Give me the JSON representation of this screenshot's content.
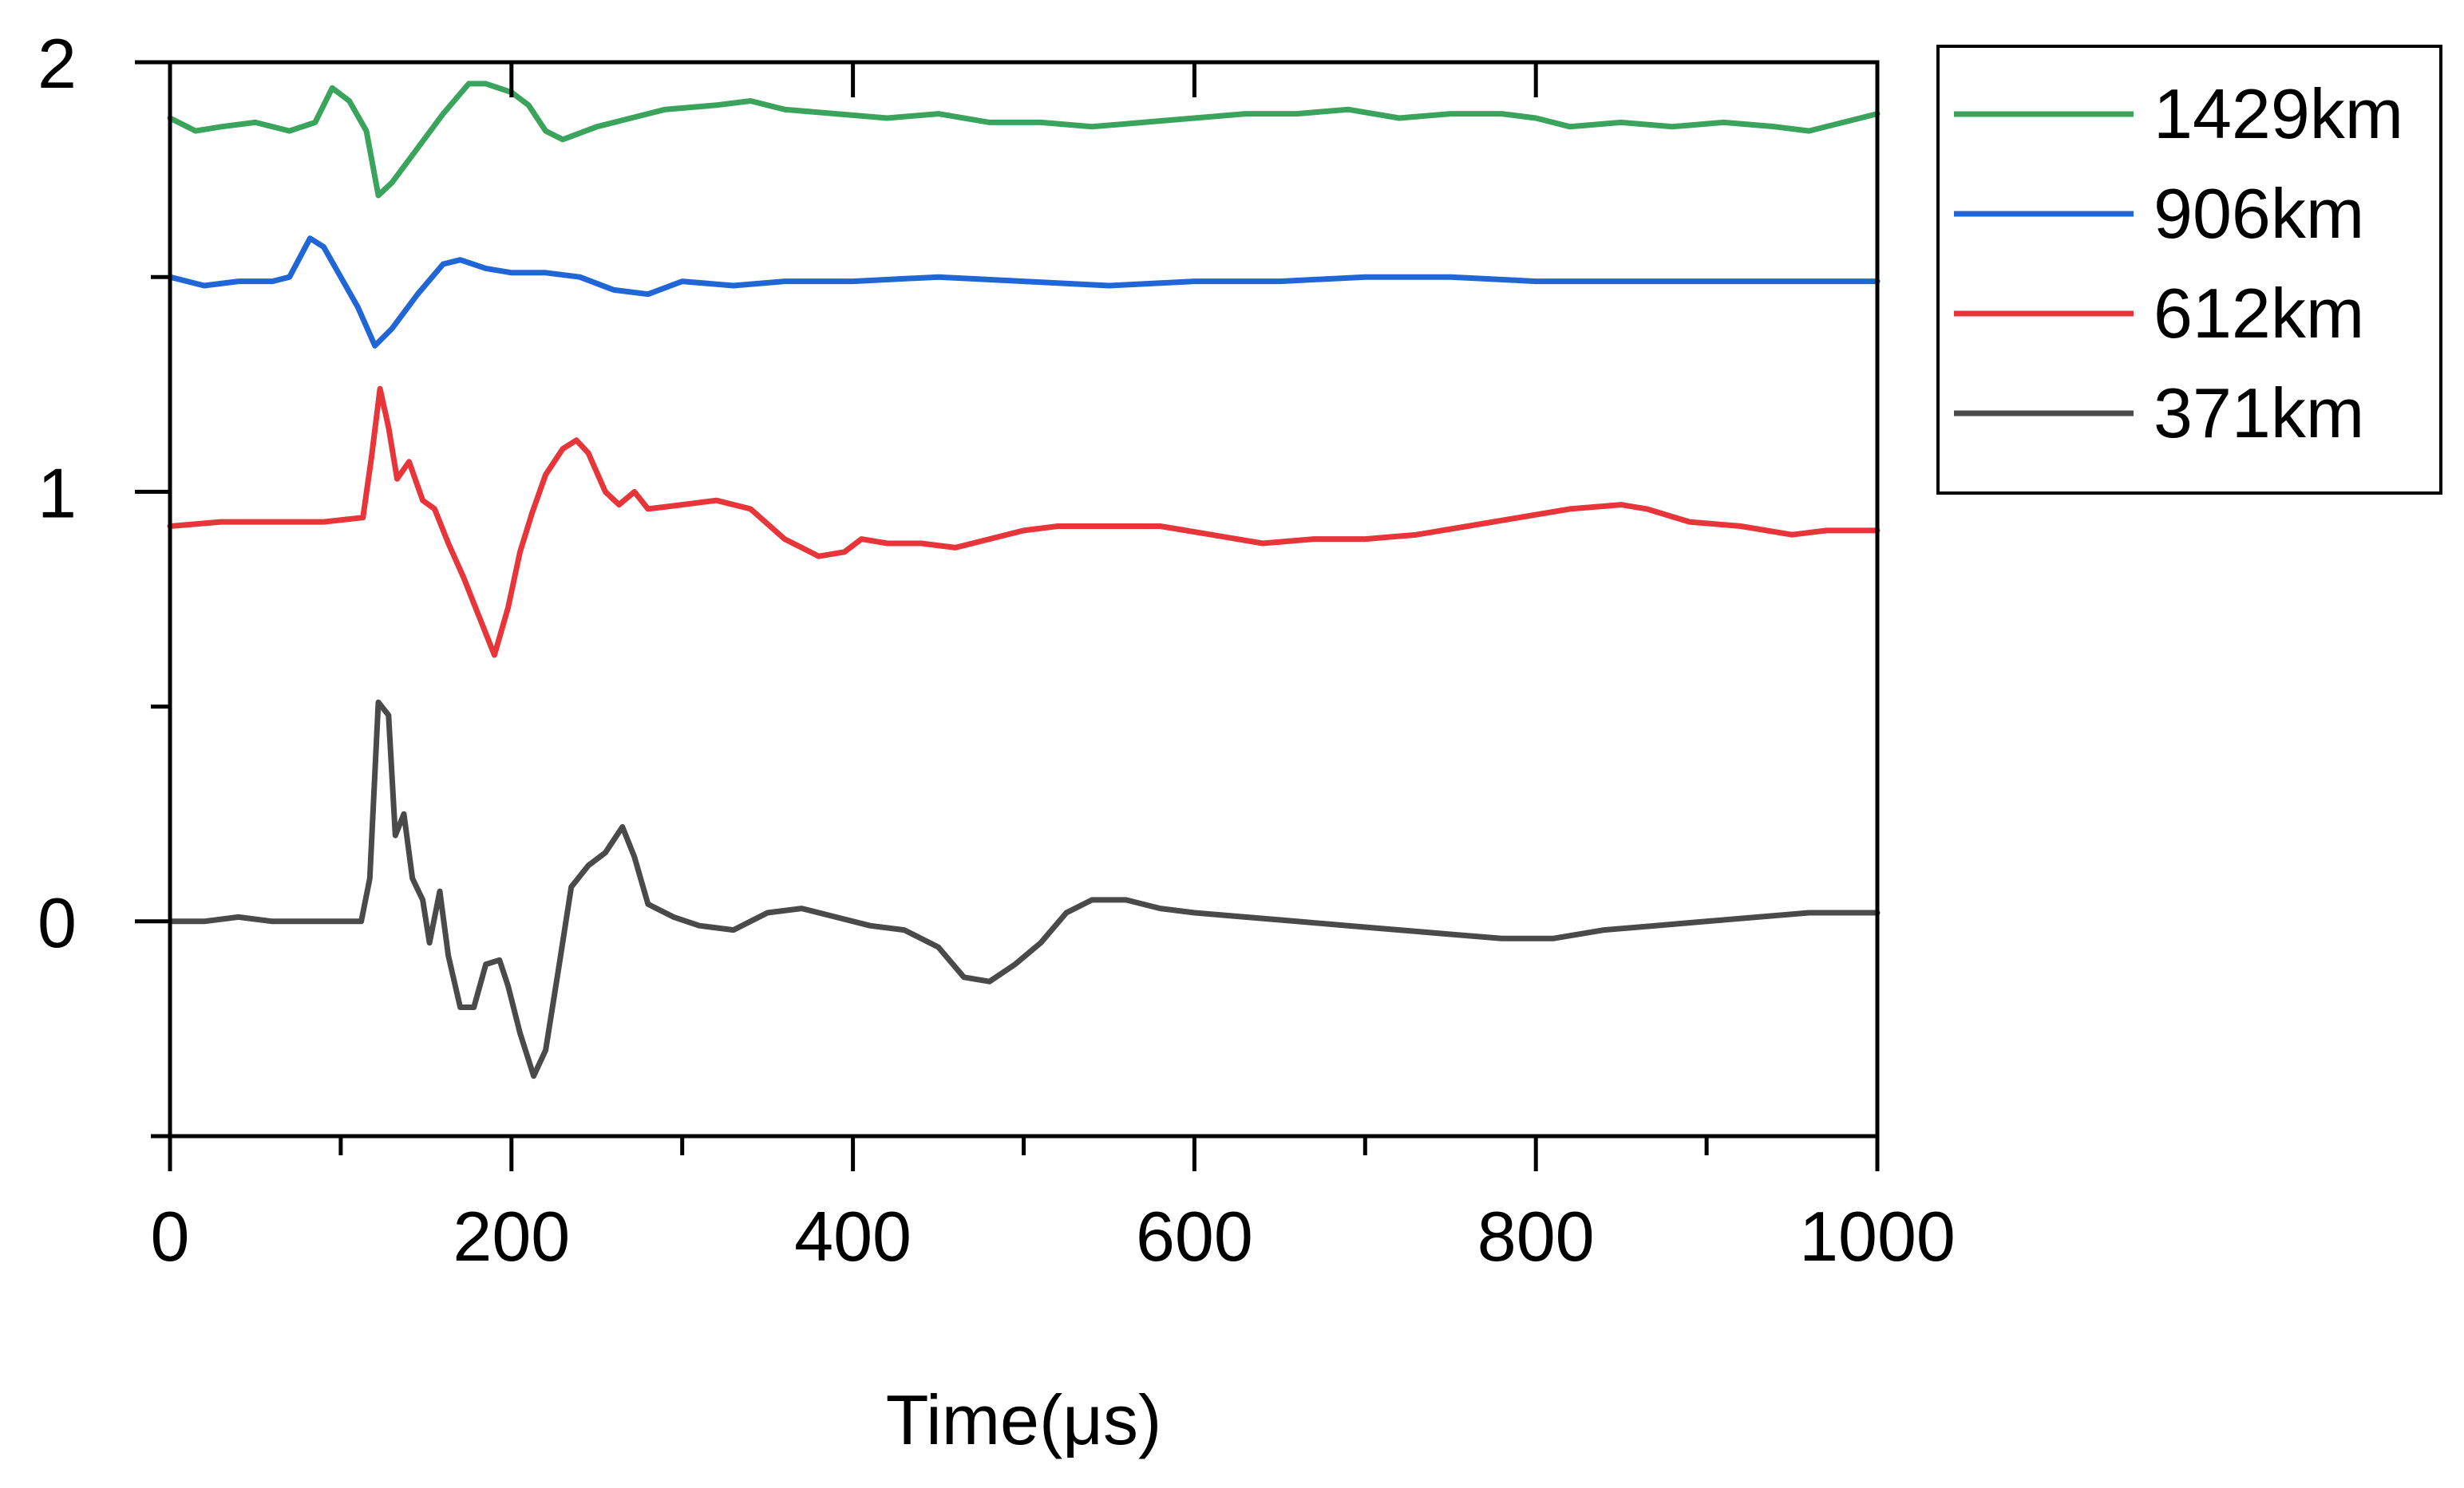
{
  "chart_data": {
    "type": "line",
    "title": "",
    "xlabel": "Time(μs)",
    "ylabel": "",
    "xlim": [
      0,
      1000
    ],
    "ylim": [
      -0.5,
      2
    ],
    "xticks": [
      0,
      200,
      400,
      600,
      800,
      1000
    ],
    "xtick_labels": [
      "0",
      "200",
      "400",
      "600",
      "800",
      "1000"
    ],
    "yticks": [
      0,
      1,
      2
    ],
    "ytick_labels": [
      "0",
      "1",
      "2"
    ],
    "grid": false,
    "legend_position": "top-right, outside plot",
    "series": [
      {
        "name": "1429km",
        "color": "#3aa35c",
        "points": [
          [
            0,
            1.87
          ],
          [
            15,
            1.84
          ],
          [
            30,
            1.85
          ],
          [
            50,
            1.86
          ],
          [
            70,
            1.84
          ],
          [
            85,
            1.86
          ],
          [
            95,
            1.94
          ],
          [
            105,
            1.91
          ],
          [
            115,
            1.84
          ],
          [
            122,
            1.69
          ],
          [
            130,
            1.72
          ],
          [
            145,
            1.8
          ],
          [
            160,
            1.88
          ],
          [
            175,
            1.95
          ],
          [
            185,
            1.95
          ],
          [
            200,
            1.93
          ],
          [
            210,
            1.9
          ],
          [
            220,
            1.84
          ],
          [
            230,
            1.82
          ],
          [
            250,
            1.85
          ],
          [
            270,
            1.87
          ],
          [
            290,
            1.89
          ],
          [
            320,
            1.9
          ],
          [
            340,
            1.91
          ],
          [
            360,
            1.89
          ],
          [
            390,
            1.88
          ],
          [
            420,
            1.87
          ],
          [
            450,
            1.88
          ],
          [
            480,
            1.86
          ],
          [
            510,
            1.86
          ],
          [
            540,
            1.85
          ],
          [
            570,
            1.86
          ],
          [
            600,
            1.87
          ],
          [
            630,
            1.88
          ],
          [
            660,
            1.88
          ],
          [
            690,
            1.89
          ],
          [
            720,
            1.87
          ],
          [
            750,
            1.88
          ],
          [
            780,
            1.88
          ],
          [
            800,
            1.87
          ],
          [
            820,
            1.85
          ],
          [
            850,
            1.86
          ],
          [
            880,
            1.85
          ],
          [
            910,
            1.86
          ],
          [
            940,
            1.85
          ],
          [
            960,
            1.84
          ],
          [
            980,
            1.86
          ],
          [
            1000,
            1.88
          ]
        ]
      },
      {
        "name": "906km",
        "color": "#2166d6",
        "points": [
          [
            0,
            1.5
          ],
          [
            20,
            1.48
          ],
          [
            40,
            1.49
          ],
          [
            60,
            1.49
          ],
          [
            70,
            1.5
          ],
          [
            82,
            1.59
          ],
          [
            90,
            1.57
          ],
          [
            100,
            1.5
          ],
          [
            110,
            1.43
          ],
          [
            120,
            1.34
          ],
          [
            130,
            1.38
          ],
          [
            145,
            1.46
          ],
          [
            160,
            1.53
          ],
          [
            170,
            1.54
          ],
          [
            185,
            1.52
          ],
          [
            200,
            1.51
          ],
          [
            220,
            1.51
          ],
          [
            240,
            1.5
          ],
          [
            260,
            1.47
          ],
          [
            280,
            1.46
          ],
          [
            300,
            1.49
          ],
          [
            330,
            1.48
          ],
          [
            360,
            1.49
          ],
          [
            400,
            1.49
          ],
          [
            450,
            1.5
          ],
          [
            500,
            1.49
          ],
          [
            550,
            1.48
          ],
          [
            600,
            1.49
          ],
          [
            650,
            1.49
          ],
          [
            700,
            1.5
          ],
          [
            750,
            1.5
          ],
          [
            800,
            1.49
          ],
          [
            850,
            1.49
          ],
          [
            900,
            1.49
          ],
          [
            950,
            1.49
          ],
          [
            1000,
            1.49
          ]
        ]
      },
      {
        "name": "612km",
        "color": "#e8353a",
        "points": [
          [
            0,
            0.92
          ],
          [
            30,
            0.93
          ],
          [
            60,
            0.93
          ],
          [
            90,
            0.93
          ],
          [
            113,
            0.94
          ],
          [
            118,
            1.08
          ],
          [
            123,
            1.24
          ],
          [
            128,
            1.15
          ],
          [
            133,
            1.03
          ],
          [
            140,
            1.07
          ],
          [
            148,
            0.98
          ],
          [
            155,
            0.96
          ],
          [
            163,
            0.88
          ],
          [
            172,
            0.8
          ],
          [
            180,
            0.72
          ],
          [
            190,
            0.62
          ],
          [
            198,
            0.73
          ],
          [
            205,
            0.86
          ],
          [
            212,
            0.95
          ],
          [
            220,
            1.04
          ],
          [
            230,
            1.1
          ],
          [
            238,
            1.12
          ],
          [
            245,
            1.09
          ],
          [
            255,
            1.0
          ],
          [
            263,
            0.97
          ],
          [
            272,
            1.0
          ],
          [
            280,
            0.96
          ],
          [
            300,
            0.97
          ],
          [
            320,
            0.98
          ],
          [
            340,
            0.96
          ],
          [
            360,
            0.89
          ],
          [
            380,
            0.85
          ],
          [
            395,
            0.86
          ],
          [
            405,
            0.89
          ],
          [
            420,
            0.88
          ],
          [
            440,
            0.88
          ],
          [
            460,
            0.87
          ],
          [
            480,
            0.89
          ],
          [
            500,
            0.91
          ],
          [
            520,
            0.92
          ],
          [
            550,
            0.92
          ],
          [
            580,
            0.92
          ],
          [
            610,
            0.9
          ],
          [
            640,
            0.88
          ],
          [
            670,
            0.89
          ],
          [
            700,
            0.89
          ],
          [
            730,
            0.9
          ],
          [
            760,
            0.92
          ],
          [
            790,
            0.94
          ],
          [
            820,
            0.96
          ],
          [
            850,
            0.97
          ],
          [
            865,
            0.96
          ],
          [
            890,
            0.93
          ],
          [
            920,
            0.92
          ],
          [
            950,
            0.9
          ],
          [
            970,
            0.91
          ],
          [
            1000,
            0.91
          ]
        ]
      },
      {
        "name": "371km",
        "color": "#4a4a4a",
        "points": [
          [
            0,
            0.0
          ],
          [
            20,
            0.0
          ],
          [
            40,
            0.01
          ],
          [
            60,
            0.0
          ],
          [
            80,
            0.0
          ],
          [
            100,
            0.0
          ],
          [
            112,
            0.0
          ],
          [
            117,
            0.1
          ],
          [
            122,
            0.51
          ],
          [
            128,
            0.48
          ],
          [
            132,
            0.2
          ],
          [
            137,
            0.25
          ],
          [
            142,
            0.1
          ],
          [
            148,
            0.05
          ],
          [
            152,
            -0.05
          ],
          [
            158,
            0.07
          ],
          [
            163,
            -0.08
          ],
          [
            170,
            -0.2
          ],
          [
            178,
            -0.2
          ],
          [
            185,
            -0.1
          ],
          [
            193,
            -0.09
          ],
          [
            198,
            -0.15
          ],
          [
            205,
            -0.26
          ],
          [
            213,
            -0.36
          ],
          [
            220,
            -0.3
          ],
          [
            228,
            -0.1
          ],
          [
            235,
            0.08
          ],
          [
            245,
            0.13
          ],
          [
            255,
            0.16
          ],
          [
            265,
            0.22
          ],
          [
            272,
            0.15
          ],
          [
            280,
            0.04
          ],
          [
            295,
            0.01
          ],
          [
            310,
            -0.01
          ],
          [
            330,
            -0.02
          ],
          [
            350,
            0.02
          ],
          [
            370,
            0.03
          ],
          [
            390,
            0.01
          ],
          [
            410,
            -0.01
          ],
          [
            430,
            -0.02
          ],
          [
            450,
            -0.06
          ],
          [
            465,
            -0.13
          ],
          [
            480,
            -0.14
          ],
          [
            495,
            -0.1
          ],
          [
            510,
            -0.05
          ],
          [
            525,
            0.02
          ],
          [
            540,
            0.05
          ],
          [
            560,
            0.05
          ],
          [
            580,
            0.03
          ],
          [
            600,
            0.02
          ],
          [
            630,
            0.01
          ],
          [
            660,
            0.0
          ],
          [
            690,
            -0.01
          ],
          [
            720,
            -0.02
          ],
          [
            750,
            -0.03
          ],
          [
            780,
            -0.04
          ],
          [
            810,
            -0.04
          ],
          [
            840,
            -0.02
          ],
          [
            870,
            -0.01
          ],
          [
            900,
            0.0
          ],
          [
            930,
            0.01
          ],
          [
            960,
            0.02
          ],
          [
            1000,
            0.02
          ]
        ]
      }
    ]
  }
}
